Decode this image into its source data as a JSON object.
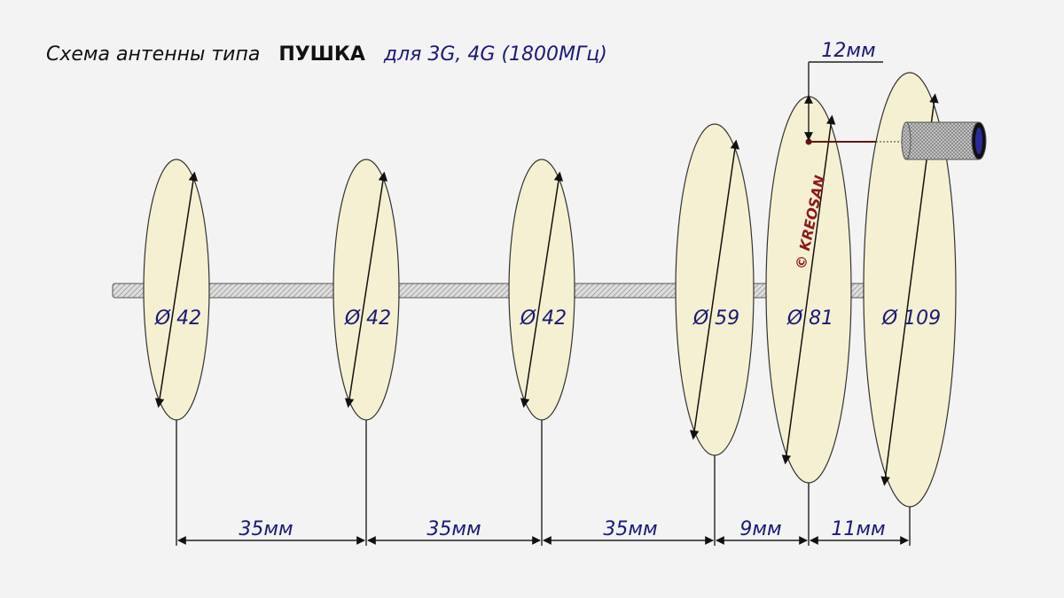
{
  "title": {
    "lead": "Схема антенны типа",
    "name": "ПУШКА",
    "note": "для 3G, 4G (1800МГц)"
  },
  "disks": [
    {
      "label": "Ø 42"
    },
    {
      "label": "Ø 42"
    },
    {
      "label": "Ø 42"
    },
    {
      "label": "Ø 59"
    },
    {
      "label": "Ø 81"
    },
    {
      "label": "Ø 109"
    }
  ],
  "spacings": [
    "35мм",
    "35мм",
    "35мм",
    "9мм",
    "11мм"
  ],
  "feed_offset": "12мм",
  "watermark": "© KREOSAN"
}
